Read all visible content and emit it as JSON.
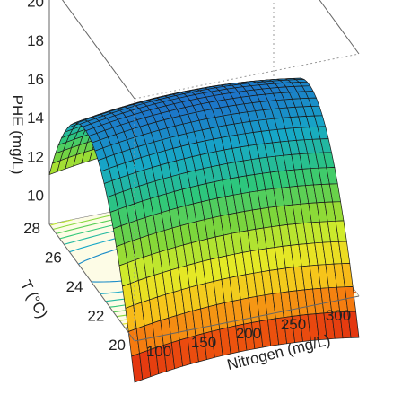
{
  "chart_data": {
    "type": "surface3d",
    "title": "",
    "xlabel": "Nitrogen (mg/L)",
    "ylabel": "T (°C)",
    "zlabel": "PHE (mg/L)",
    "x_ticks": [
      "100",
      "150",
      "200",
      "250",
      "300"
    ],
    "y_ticks": [
      "20",
      "22",
      "24",
      "26",
      "28"
    ],
    "z_ticks": [
      "10",
      "12",
      "14",
      "16",
      "18",
      "20"
    ],
    "xlim": [
      75,
      325
    ],
    "ylim": [
      20,
      28
    ],
    "zlim": [
      8.5,
      21
    ],
    "model": {
      "intercept": 16.4,
      "x_center": 200,
      "y_center": 24.5,
      "x_halfrange": 125,
      "y_halfrange": 4,
      "x_quadratic": -0.5,
      "y_quadratic": -7.0,
      "y_linear": 0.6,
      "xy_interaction": 0.0
    },
    "colormap": [
      "#d81212",
      "#f46a0d",
      "#f7c31a",
      "#e1ef28",
      "#7ed63a",
      "#2ec77a",
      "#16a9c7",
      "#1d72c9"
    ],
    "floor_contours": true
  }
}
